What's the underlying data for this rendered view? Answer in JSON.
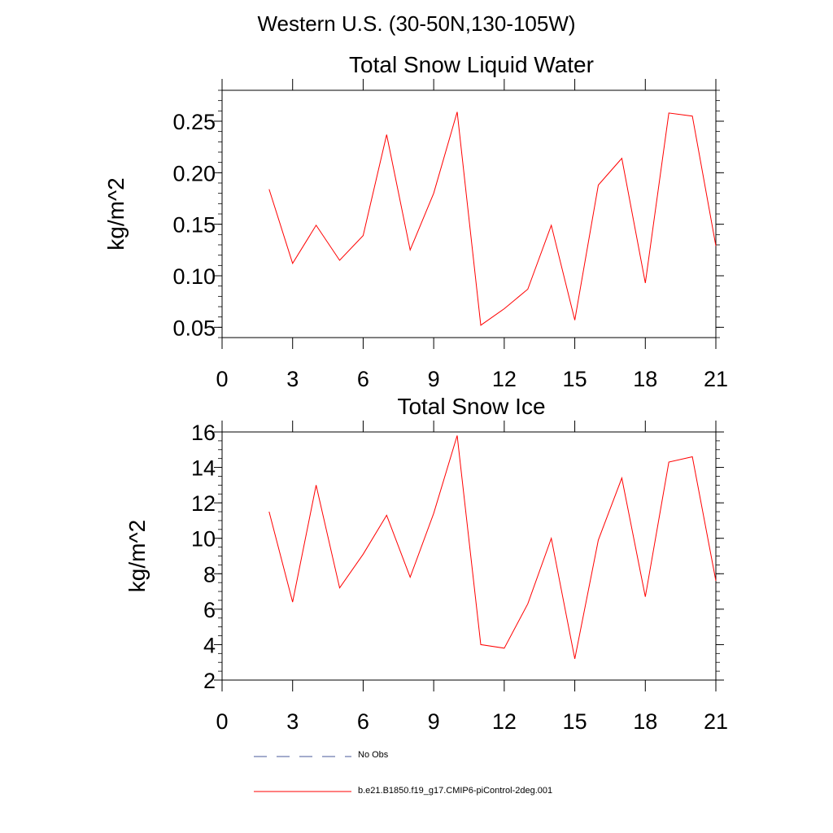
{
  "figure": {
    "main_title": "Western U.S. (30-50N,130-105W)"
  },
  "chart_data": [
    {
      "type": "line",
      "title": "Total Snow Liquid Water",
      "xlabel": "",
      "ylabel": "kg/m^2",
      "xlim": [
        0,
        21
      ],
      "ylim": [
        0.04,
        0.28
      ],
      "xticks": [
        0,
        3,
        6,
        9,
        12,
        15,
        18,
        21
      ],
      "xtick_labels": [
        "0",
        "3",
        "6",
        "9",
        "12",
        "15",
        "18",
        "21"
      ],
      "yticks": [
        0.05,
        0.1,
        0.15,
        0.2,
        0.25
      ],
      "ytick_labels": [
        "0.05",
        "0.10",
        "0.15",
        "0.20",
        "0.25"
      ],
      "grid": false,
      "series": [
        {
          "name": "b.e21.B1850.f19_g17.CMIP6-piControl-2deg.001",
          "color": "#ff0000",
          "x": [
            2,
            3,
            4,
            5,
            6,
            7,
            8,
            9,
            10,
            11,
            12,
            13,
            14,
            15,
            16,
            17,
            18,
            19,
            20,
            21
          ],
          "values": [
            0.184,
            0.112,
            0.149,
            0.115,
            0.139,
            0.237,
            0.125,
            0.18,
            0.259,
            0.052,
            0.068,
            0.087,
            0.149,
            0.057,
            0.188,
            0.214,
            0.093,
            0.258,
            0.255,
            0.129
          ]
        }
      ]
    },
    {
      "type": "line",
      "title": "Total Snow Ice",
      "xlabel": "",
      "ylabel": "kg/m^2",
      "xlim": [
        0,
        21
      ],
      "ylim": [
        2,
        16
      ],
      "xticks": [
        0,
        3,
        6,
        9,
        12,
        15,
        18,
        21
      ],
      "xtick_labels": [
        "0",
        "3",
        "6",
        "9",
        "12",
        "15",
        "18",
        "21"
      ],
      "yticks": [
        2,
        4,
        6,
        8,
        10,
        12,
        14,
        16
      ],
      "ytick_labels": [
        "2",
        "4",
        "6",
        "8",
        "10",
        "12",
        "14",
        "16"
      ],
      "grid": false,
      "series": [
        {
          "name": "b.e21.B1850.f19_g17.CMIP6-piControl-2deg.001",
          "color": "#ff0000",
          "x": [
            2,
            3,
            4,
            5,
            6,
            7,
            8,
            9,
            10,
            11,
            12,
            13,
            14,
            15,
            16,
            17,
            18,
            19,
            20,
            21
          ],
          "values": [
            11.5,
            6.4,
            13.0,
            7.2,
            9.1,
            11.3,
            7.8,
            11.4,
            15.8,
            4.0,
            3.8,
            6.3,
            10.0,
            3.2,
            9.9,
            13.4,
            6.7,
            14.3,
            14.6,
            7.6
          ]
        }
      ]
    }
  ],
  "legend": {
    "position": "bottom-left",
    "entries": [
      {
        "label": "No Obs",
        "color": "#4a5a9a",
        "style": "dashed"
      },
      {
        "label": "b.e21.B1850.f19_g17.CMIP6-piControl-2deg.001",
        "color": "#ff0000",
        "style": "solid"
      }
    ]
  }
}
